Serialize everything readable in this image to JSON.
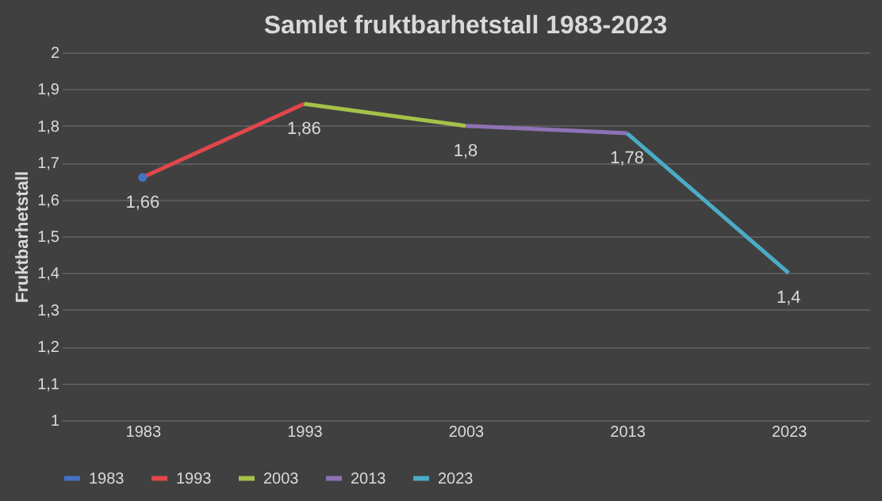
{
  "chart_data": {
    "type": "line",
    "title": "Samlet fruktbarhetstall 1983-2023",
    "ylabel": "Fruktbarhetstall",
    "categories": [
      "1983",
      "1993",
      "2003",
      "2013",
      "2023"
    ],
    "series": [
      {
        "name": "1983",
        "color": "#4472c4",
        "marker": "circle",
        "values": [
          1.66,
          null,
          null,
          null,
          null
        ]
      },
      {
        "name": "1993",
        "color": "#e0474c",
        "values": [
          1.66,
          1.86,
          null,
          null,
          null
        ]
      },
      {
        "name": "2003",
        "color": "#a5c249",
        "values": [
          null,
          1.86,
          1.8,
          null,
          null
        ]
      },
      {
        "name": "2013",
        "color": "#8e72b5",
        "values": [
          null,
          null,
          1.8,
          1.78,
          null
        ]
      },
      {
        "name": "2023",
        "color": "#4bacc6",
        "values": [
          null,
          null,
          null,
          1.78,
          1.4
        ]
      }
    ],
    "annotations": [
      {
        "text": "1,66",
        "x": "1983",
        "y": 1.66
      },
      {
        "text": "1,86",
        "x": "1993",
        "y": 1.86
      },
      {
        "text": "1,8",
        "x": "2003",
        "y": 1.8
      },
      {
        "text": "1,78",
        "x": "2013",
        "y": 1.78
      },
      {
        "text": "1,4",
        "x": "2023",
        "y": 1.4
      }
    ],
    "ylim": [
      1,
      2
    ],
    "yticks": [
      {
        "value": 1,
        "label": "1"
      },
      {
        "value": 1.1,
        "label": "1,1"
      },
      {
        "value": 1.2,
        "label": "1,2"
      },
      {
        "value": 1.3,
        "label": "1,3"
      },
      {
        "value": 1.4,
        "label": "1,4"
      },
      {
        "value": 1.5,
        "label": "1,5"
      },
      {
        "value": 1.6,
        "label": "1,6"
      },
      {
        "value": 1.7,
        "label": "1,7"
      },
      {
        "value": 1.8,
        "label": "1,8"
      },
      {
        "value": 1.9,
        "label": "1,9"
      },
      {
        "value": 2,
        "label": "2"
      }
    ],
    "grid": "y",
    "legend": "bottom",
    "marker": "none",
    "line_style": "solid"
  }
}
